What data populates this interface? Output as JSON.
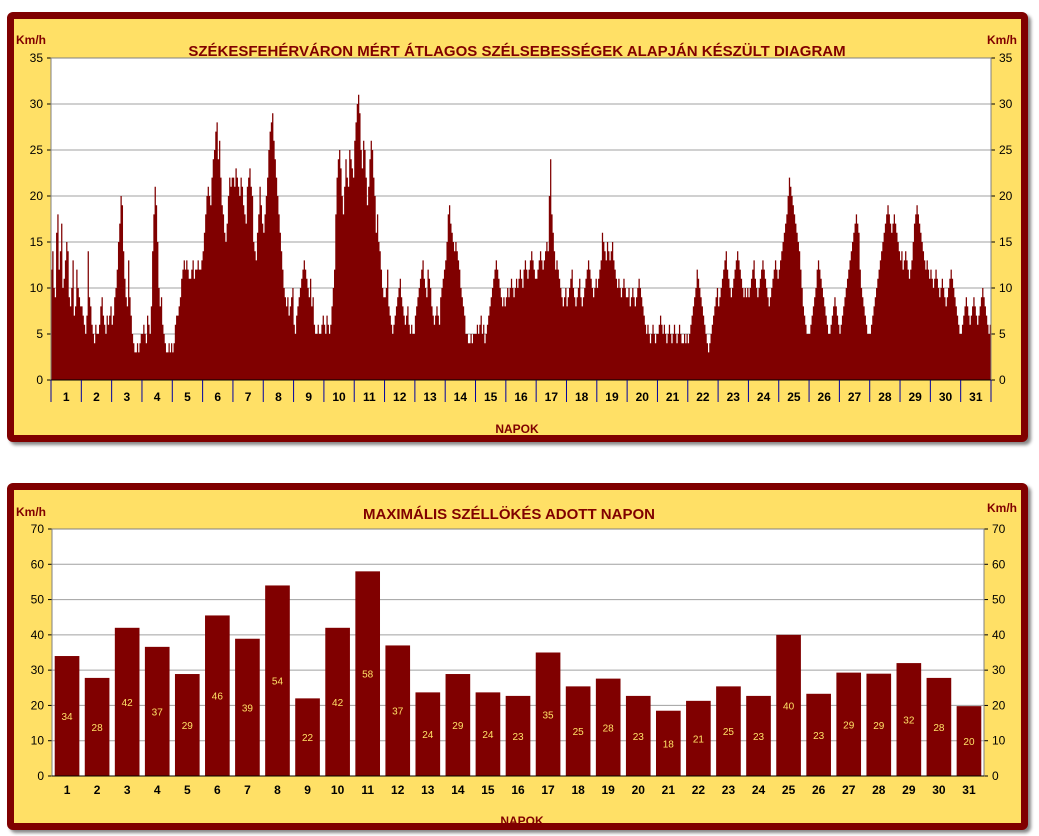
{
  "chart_data": [
    {
      "type": "area",
      "title": "SZÉKESFEHÉRVÁRON MÉRT ÁTLAGOS SZÉLSEBESSÉGEK ALAPJÁN KÉSZÜLT DIAGRAM",
      "ylabel_left": "Km/h",
      "ylabel_right": "Km/h",
      "xlabel": "NAPOK",
      "ylim": [
        0,
        35
      ],
      "yticks": [
        0,
        5,
        10,
        15,
        20,
        25,
        30,
        35
      ],
      "categories": [
        "1",
        "2",
        "3",
        "4",
        "5",
        "6",
        "7",
        "8",
        "9",
        "10",
        "11",
        "12",
        "13",
        "14",
        "15",
        "16",
        "17",
        "18",
        "19",
        "20",
        "21",
        "22",
        "23",
        "24",
        "25",
        "26",
        "27",
        "28",
        "29",
        "30",
        "31"
      ],
      "grid": true,
      "values_per_day": 24,
      "daily_profile": [
        [
          12,
          14,
          10,
          9,
          16,
          18,
          12,
          14,
          17,
          10,
          11,
          13,
          15,
          14,
          9,
          8,
          10,
          13,
          7,
          8,
          12,
          10,
          9,
          8
        ],
        [
          8,
          7,
          6,
          5,
          7,
          14,
          9,
          8,
          6,
          5,
          4,
          6,
          5,
          5,
          6,
          8,
          9,
          7,
          6,
          5,
          7,
          6,
          7,
          8
        ],
        [
          6,
          7,
          9,
          10,
          12,
          15,
          17,
          20,
          19,
          14,
          11,
          9,
          8,
          13,
          9,
          7,
          5,
          4,
          3,
          3,
          4,
          3,
          4,
          5
        ],
        [
          5,
          6,
          5,
          4,
          7,
          6,
          5,
          8,
          14,
          18,
          21,
          19,
          15,
          10,
          8,
          9,
          6,
          5,
          4,
          3,
          3,
          4,
          3,
          4
        ],
        [
          3,
          4,
          6,
          7,
          7,
          8,
          9,
          11,
          12,
          13,
          12,
          13,
          12,
          11,
          11,
          12,
          13,
          11,
          12,
          12,
          13,
          12,
          12,
          13
        ],
        [
          14,
          16,
          18,
          20,
          21,
          20,
          19,
          22,
          24,
          25,
          27,
          28,
          24,
          26,
          22,
          19,
          18,
          16,
          15,
          17,
          20,
          22,
          21,
          22
        ],
        [
          22,
          21,
          23,
          22,
          21,
          20,
          22,
          21,
          19,
          18,
          17,
          21,
          22,
          23,
          21,
          20,
          15,
          14,
          13,
          16,
          18,
          21,
          19,
          17
        ],
        [
          16,
          18,
          20,
          22,
          25,
          27,
          28,
          29,
          26,
          24,
          22,
          20,
          18,
          16,
          14,
          12,
          10,
          9,
          8,
          9,
          7,
          8,
          9,
          10
        ],
        [
          6,
          5,
          7,
          8,
          9,
          10,
          11,
          12,
          13,
          12,
          11,
          10,
          9,
          11,
          8,
          9,
          6,
          5,
          5,
          6,
          5,
          5,
          6,
          7
        ],
        [
          6,
          5,
          7,
          6,
          5,
          6,
          8,
          10,
          12,
          18,
          22,
          24,
          25,
          23,
          20,
          18,
          21,
          24,
          22,
          21,
          25,
          24,
          23,
          22
        ],
        [
          26,
          28,
          30,
          31,
          29,
          25,
          23,
          26,
          25,
          22,
          19,
          21,
          24,
          26,
          25,
          22,
          20,
          16,
          18,
          15,
          14,
          12,
          10,
          9
        ],
        [
          9,
          10,
          12,
          8,
          7,
          6,
          5,
          6,
          7,
          8,
          9,
          10,
          11,
          9,
          8,
          7,
          6,
          7,
          8,
          6,
          5,
          6,
          5,
          5
        ],
        [
          7,
          8,
          9,
          10,
          11,
          12,
          13,
          11,
          10,
          9,
          12,
          11,
          10,
          8,
          7,
          6,
          7,
          8,
          7,
          6,
          9,
          10,
          11,
          12
        ],
        [
          13,
          15,
          18,
          19,
          17,
          16,
          15,
          14,
          15,
          14,
          13,
          12,
          10,
          9,
          8,
          7,
          5,
          5,
          4,
          4,
          5,
          4,
          5,
          5
        ],
        [
          5,
          6,
          5,
          6,
          7,
          5,
          6,
          4,
          5,
          6,
          7,
          8,
          9,
          10,
          11,
          12,
          13,
          12,
          11,
          10,
          9,
          8,
          9,
          8
        ],
        [
          9,
          10,
          9,
          10,
          11,
          10,
          9,
          10,
          11,
          10,
          11,
          12,
          11,
          10,
          12,
          13,
          12,
          11,
          12,
          13,
          14,
          13,
          12,
          11
        ],
        [
          11,
          12,
          13,
          14,
          13,
          12,
          13,
          14,
          15,
          14,
          20,
          24,
          18,
          16,
          14,
          12,
          13,
          12,
          11,
          10,
          9,
          8,
          9,
          10
        ],
        [
          8,
          9,
          10,
          11,
          12,
          10,
          9,
          8,
          9,
          10,
          11,
          9,
          8,
          9,
          10,
          11,
          12,
          13,
          12,
          11,
          10,
          9,
          10,
          11
        ],
        [
          10,
          11,
          12,
          13,
          16,
          15,
          14,
          13,
          15,
          14,
          13,
          14,
          15,
          13,
          12,
          11,
          10,
          11,
          10,
          9,
          10,
          11,
          10,
          9
        ],
        [
          9,
          10,
          8,
          9,
          10,
          9,
          8,
          9,
          10,
          11,
          10,
          9,
          8,
          7,
          6,
          5,
          6,
          5,
          4,
          5,
          6,
          5,
          4,
          5
        ],
        [
          5,
          6,
          7,
          6,
          5,
          6,
          5,
          4,
          5,
          6,
          5,
          4,
          5,
          6,
          5,
          4,
          5,
          6,
          5,
          4,
          4,
          5,
          4,
          5
        ],
        [
          4,
          5,
          6,
          7,
          8,
          9,
          10,
          12,
          11,
          10,
          9,
          8,
          7,
          6,
          5,
          4,
          3,
          4,
          5,
          6,
          7,
          8,
          9,
          10
        ],
        [
          8,
          9,
          10,
          11,
          12,
          13,
          14,
          12,
          11,
          10,
          9,
          10,
          11,
          12,
          13,
          14,
          13,
          12,
          11,
          10,
          9,
          10,
          9,
          10
        ],
        [
          9,
          10,
          11,
          12,
          13,
          11,
          10,
          9,
          10,
          11,
          12,
          13,
          12,
          11,
          10,
          9,
          8,
          9,
          10,
          11,
          12,
          13,
          12,
          11
        ],
        [
          12,
          13,
          14,
          15,
          16,
          17,
          18,
          20,
          22,
          21,
          20,
          19,
          18,
          17,
          16,
          15,
          14,
          12,
          10,
          8,
          7,
          6,
          5,
          5
        ],
        [
          5,
          6,
          7,
          8,
          9,
          10,
          12,
          13,
          12,
          11,
          10,
          9,
          8,
          7,
          6,
          5,
          5,
          6,
          7,
          8,
          9,
          8,
          7,
          6
        ],
        [
          5,
          6,
          7,
          8,
          9,
          10,
          11,
          12,
          13,
          14,
          15,
          16,
          17,
          18,
          17,
          16,
          12,
          10,
          9,
          8,
          7,
          6,
          5,
          5
        ],
        [
          5,
          6,
          7,
          8,
          9,
          10,
          11,
          12,
          13,
          14,
          15,
          16,
          17,
          18,
          19,
          18,
          17,
          16,
          17,
          18,
          17,
          16,
          15,
          14
        ],
        [
          13,
          14,
          12,
          13,
          14,
          13,
          12,
          11,
          12,
          13,
          15,
          17,
          18,
          19,
          18,
          17,
          16,
          15,
          14,
          13,
          12,
          13,
          12,
          11
        ],
        [
          12,
          11,
          10,
          11,
          12,
          11,
          10,
          9,
          10,
          11,
          10,
          9,
          8,
          9,
          10,
          11,
          12,
          11,
          10,
          9,
          8,
          7,
          6,
          5
        ],
        [
          5,
          6,
          7,
          8,
          9,
          8,
          7,
          6,
          7,
          8,
          9,
          8,
          7,
          6,
          7,
          8,
          9,
          10,
          9,
          8,
          7,
          6,
          5,
          6
        ]
      ]
    },
    {
      "type": "bar",
      "title": "MAXIMÁLIS SZÉLLÖKÉS ADOTT NAPON",
      "ylabel_left": "Km/h",
      "ylabel_right": "Km/h",
      "xlabel": "NAPOK",
      "ylim": [
        0,
        70
      ],
      "yticks": [
        0,
        10,
        20,
        30,
        40,
        50,
        60,
        70
      ],
      "grid": true,
      "categories": [
        "1",
        "2",
        "3",
        "4",
        "5",
        "6",
        "7",
        "8",
        "9",
        "10",
        "11",
        "12",
        "13",
        "14",
        "15",
        "16",
        "17",
        "18",
        "19",
        "20",
        "21",
        "22",
        "23",
        "24",
        "25",
        "26",
        "27",
        "28",
        "29",
        "30",
        "31"
      ],
      "values": [
        34,
        27.8,
        42,
        36.6,
        28.9,
        45.5,
        38.9,
        54,
        22,
        42,
        58,
        37,
        23.7,
        28.9,
        23.7,
        22.7,
        35,
        25.4,
        27.6,
        22.7,
        18.5,
        21.3,
        25.4,
        22.7,
        40,
        23.3,
        29.3,
        29,
        32,
        27.8,
        19.8
      ],
      "data_labels": [
        "34",
        "28",
        "42",
        "37",
        "29",
        "46",
        "39",
        "54",
        "22",
        "42",
        "58",
        "37",
        "24",
        "29",
        "24",
        "23",
        "35",
        "25",
        "28",
        "23",
        "18",
        "21",
        "25",
        "23",
        "40",
        "23",
        "29",
        "29",
        "32",
        "28",
        "20"
      ]
    }
  ]
}
